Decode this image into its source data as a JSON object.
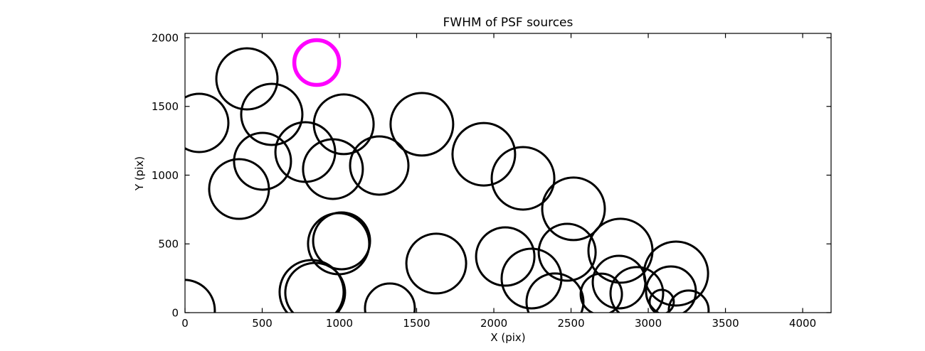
{
  "chart_data": {
    "type": "scatter",
    "title": "FWHM of PSF sources",
    "xlabel": "X (pix)",
    "ylabel": "Y (pix)",
    "xlim": [
      0,
      4184
    ],
    "ylim": [
      0,
      2031
    ],
    "x_ticks": [
      0,
      500,
      1000,
      1500,
      2000,
      2500,
      3000,
      3500,
      4000
    ],
    "y_ticks": [
      0,
      500,
      1000,
      1500,
      2000
    ],
    "grid": false,
    "legend": false,
    "marker": {
      "shape": "open-circle",
      "fill": "none",
      "radius_units": "screen-px",
      "meaning": "circle radius encodes FWHM of each PSF source"
    },
    "series": [
      {
        "name": "psf-sources",
        "edge_color": "#000000",
        "edge_width": 3,
        "points": [
          {
            "x": 401,
            "y": 1700,
            "r": 43
          },
          {
            "x": 92,
            "y": 1380,
            "r": 41
          },
          {
            "x": 562,
            "y": 1442,
            "r": 43
          },
          {
            "x": 502,
            "y": 1101,
            "r": 40
          },
          {
            "x": 350,
            "y": 899,
            "r": 42
          },
          {
            "x": 779,
            "y": 1168,
            "r": 42
          },
          {
            "x": 1028,
            "y": 1370,
            "r": 42
          },
          {
            "x": 958,
            "y": 1044,
            "r": 42
          },
          {
            "x": 1258,
            "y": 1070,
            "r": 41
          },
          {
            "x": 1534,
            "y": 1370,
            "r": 44
          },
          {
            "x": 1935,
            "y": 1152,
            "r": 44
          },
          {
            "x": 2189,
            "y": 977,
            "r": 44
          },
          {
            "x": 2516,
            "y": 755,
            "r": 44
          },
          {
            "x": 820,
            "y": 150,
            "r": 45
          },
          {
            "x": 843,
            "y": 145,
            "r": 42
          },
          {
            "x": 995,
            "y": 501,
            "r": 43
          },
          {
            "x": 1014,
            "y": 522,
            "r": 40
          },
          {
            "x": -5,
            "y": 16,
            "r": 43
          },
          {
            "x": 1327,
            "y": 31,
            "r": 35
          },
          {
            "x": 1627,
            "y": 357,
            "r": 42
          },
          {
            "x": 2074,
            "y": 408,
            "r": 41
          },
          {
            "x": 2244,
            "y": 248,
            "r": 42
          },
          {
            "x": 2475,
            "y": 439,
            "r": 40
          },
          {
            "x": 2820,
            "y": 450,
            "r": 45
          },
          {
            "x": 2396,
            "y": 78,
            "r": 40
          },
          {
            "x": 2811,
            "y": 222,
            "r": 37
          },
          {
            "x": 2696,
            "y": 134,
            "r": 29
          },
          {
            "x": 2926,
            "y": 140,
            "r": 37
          },
          {
            "x": 3180,
            "y": 284,
            "r": 45
          },
          {
            "x": 3147,
            "y": 155,
            "r": 35
          },
          {
            "x": 3087,
            "y": 78,
            "r": 17
          },
          {
            "x": 3262,
            "y": 16,
            "r": 28
          }
        ]
      },
      {
        "name": "highlighted-source",
        "edge_color": "#ff00ff",
        "edge_width": 5.5,
        "points": [
          {
            "x": 853,
            "y": 1819,
            "r": 31.5
          }
        ]
      }
    ]
  },
  "colors": {
    "background": "#ffffff",
    "frame": "#000000",
    "source_edge": "#000000",
    "highlight_edge": "#ff00ff"
  }
}
